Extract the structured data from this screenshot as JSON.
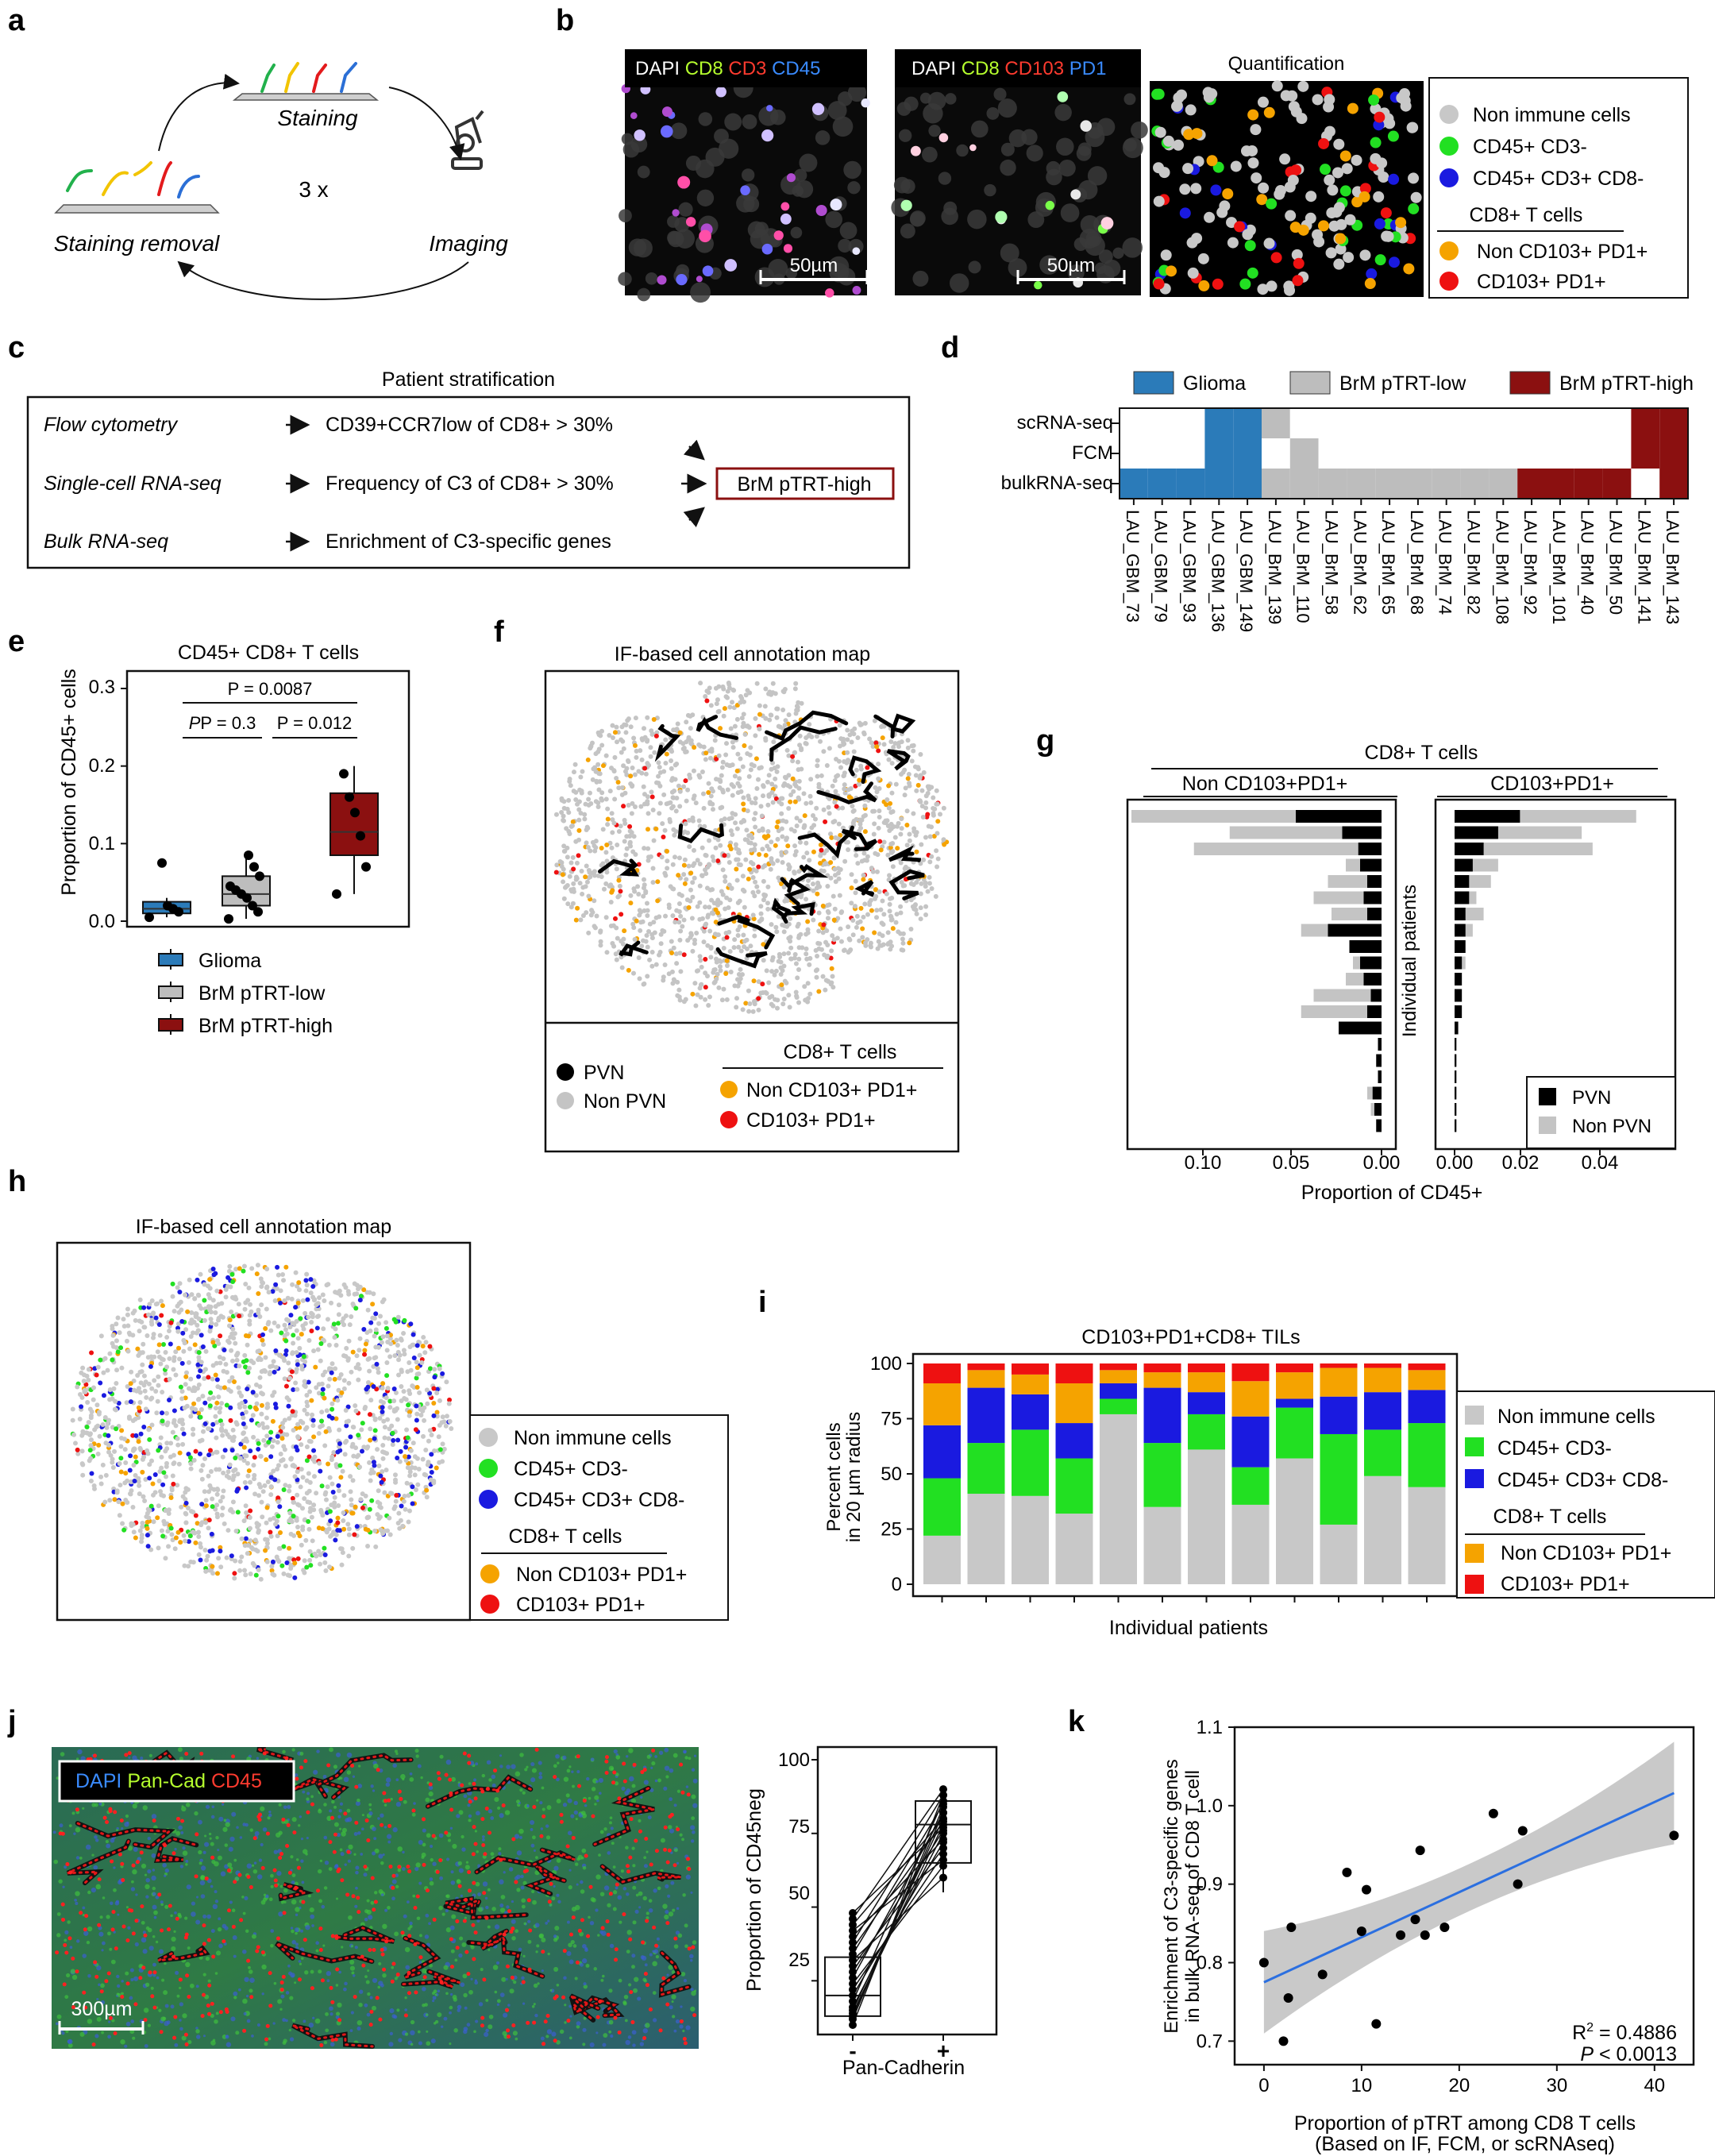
{
  "colors": {
    "glioma": "#2b7bb9",
    "low": "#bdbdbd",
    "high": "#8b1010",
    "nonimmune": "#c8c8c8",
    "cd45cd3neg": "#22e022",
    "cd45cd3cd8neg": "#1a1ae0",
    "noncd103": "#f5a300",
    "cd103": "#ee1111",
    "pvn": "#000000",
    "nonpvn": "#c4c4c4",
    "ecdf": "#2c2c2c"
  },
  "panel_letters": {
    "a": "a",
    "b": "b",
    "c": "c",
    "d": "d",
    "e": "e",
    "f": "f",
    "g": "g",
    "h": "h",
    "i": "i",
    "j": "j",
    "k": "k"
  },
  "a": {
    "top": "Staining",
    "left": "Staining removal",
    "right": "Imaging",
    "center": "3 x"
  },
  "b": {
    "img1": {
      "dapi": "DAPI",
      "cd8": "CD8",
      "cd3": "CD3",
      "cd45": "CD45"
    },
    "img2": {
      "dapi": "DAPI",
      "cd8": "CD8",
      "cd103": "CD103",
      "pd1": "PD1"
    },
    "scalebar": "50µm",
    "quant_title": "Quantification",
    "legend": {
      "nonimmune": "Non immune cells",
      "cd45cd3neg": "CD45+ CD3-",
      "cd45cd3cd8neg": "CD45+ CD3+ CD8-",
      "header": "CD8+ T cells",
      "noncd103": "Non CD103+ PD1+",
      "cd103": "CD103+ PD1+"
    }
  },
  "c": {
    "title": "Patient stratification",
    "rows": [
      {
        "method": "Flow cytometry",
        "criterion": "CD39+CCR7low of CD8+ > 30%"
      },
      {
        "method": "Single-cell RNA-seq",
        "criterion": "Frequency of C3 of CD8+ > 30%"
      },
      {
        "method": "Bulk RNA-seq",
        "criterion": "Enrichment of C3-specific genes"
      }
    ],
    "outcome": "BrM pTRT-high"
  },
  "d": {
    "legend": [
      "Glioma",
      "BrM pTRT-low",
      "BrM pTRT-high"
    ],
    "rows": [
      "scRNA-seq",
      "FCM",
      "bulkRNA-seq"
    ],
    "samples": [
      "LAU_GBM_73",
      "LAU_GBM_79",
      "LAU_GBM_93",
      "LAU_GBM_136",
      "LAU_GBM_149",
      "LAU_BrM_139",
      "LAU_BrM_110",
      "LAU_BrM_58",
      "LAU_BrM_62",
      "LAU_BrM_65",
      "LAU_BrM_68",
      "LAU_BrM_74",
      "LAU_BrM_82",
      "LAU_BrM_108",
      "LAU_BrM_92",
      "LAU_BrM_101",
      "LAU_BrM_40",
      "LAU_BrM_50",
      "LAU_BrM_141",
      "LAU_BrM_143"
    ],
    "matrix": [
      [
        0,
        0,
        0,
        1,
        1,
        2,
        0,
        0,
        0,
        0,
        0,
        0,
        0,
        0,
        0,
        0,
        0,
        0,
        3,
        3
      ],
      [
        0,
        0,
        0,
        1,
        1,
        0,
        2,
        0,
        0,
        0,
        0,
        0,
        0,
        0,
        0,
        0,
        0,
        0,
        3,
        3
      ],
      [
        1,
        1,
        1,
        1,
        1,
        2,
        2,
        2,
        2,
        2,
        2,
        2,
        2,
        2,
        3,
        3,
        3,
        3,
        0,
        3
      ]
    ]
  },
  "e": {
    "title": "CD45+ CD8+ T cells",
    "ylabel": "Proportion of CD45+ cells",
    "yticks": [
      "0.0",
      "0.1",
      "0.2",
      "0.3"
    ],
    "p": {
      "p1": "P = 0.3",
      "p2": "P = 0.012",
      "p3": "P = 0.0087"
    },
    "legend": [
      "Glioma",
      "BrM pTRT-low",
      "BrM pTRT-high"
    ]
  },
  "f": {
    "title": "IF-based cell annotation map",
    "pvn": "PVN",
    "nonpvn": "Non PVN",
    "header": "CD8+ T cells",
    "noncd103": "Non CD103+ PD1+",
    "cd103": "CD103+ PD1+"
  },
  "g": {
    "title": "CD8+ T cells",
    "left_header": "Non CD103+PD1+",
    "right_header": "CD103+PD1+",
    "ylabel": "Individual patients",
    "xlabel": "Proportion of CD45+",
    "left_ticks": [
      "0.10",
      "0.05",
      "0.00"
    ],
    "right_ticks": [
      "0.00",
      "0.02",
      "0.04"
    ],
    "legend": {
      "pvn": "PVN",
      "nonpvn": "Non PVN"
    }
  },
  "h": {
    "title": "IF-based cell annotation map",
    "legend": {
      "nonimmune": "Non immune cells",
      "cd45cd3neg": "CD45+ CD3-",
      "cd45cd3cd8neg": "CD45+ CD3+ CD8-",
      "header": "CD8+ T cells",
      "noncd103": "Non CD103+ PD1+",
      "cd103": "CD103+ PD1+"
    }
  },
  "i": {
    "legend": {
      "nonimmune": "Non immune cells",
      "cd45cd3neg": "CD45+ CD3-",
      "cd45cd3cd8neg": "CD45+ CD3+ CD8-",
      "header": "CD8+ T cells",
      "noncd103": "Non CD103+ PD1+",
      "cd103": "CD103+ PD1+"
    }
  },
  "j": {
    "legend": {
      "dapi": "DAPI",
      "pancad": "Pan-Cad",
      "cd45": "CD45"
    },
    "scalebar": "300µm",
    "ylabel": "Proportion of CD45neg",
    "yticks": [
      "25",
      "50",
      "75",
      "100"
    ],
    "xticks": [
      "-",
      "+"
    ],
    "xlabel": "Pan-Cadherin"
  },
  "k": {
    "ylabel1": "Enrichment of C3-specific genes",
    "ylabel2": "in bulk RNA-seq of CD8 T cell",
    "xlabel1": "Proportion of pTRT among CD8 T cells",
    "xlabel2": "(Based on IF, FCM, or scRNAseq)",
    "r2_base": "R",
    "r2_sup": "2",
    "r2_val": " = 0.4886",
    "p_it": "P",
    "p_val": " < 0.0013"
  },
  "chart_data": [
    {
      "type": "boxplot",
      "id": "e",
      "title": "CD45+ CD8+ T cells",
      "ylabel": "Proportion of CD45+ cells",
      "ylim": [
        0,
        0.3
      ],
      "groups": [
        {
          "name": "Glioma",
          "q1": 0.01,
          "median": 0.016,
          "q3": 0.025,
          "whisker_low": 0.005,
          "whisker_high": 0.03,
          "points": [
            0.005,
            0.012,
            0.016,
            0.02,
            0.075
          ]
        },
        {
          "name": "BrM pTRT-low",
          "q1": 0.02,
          "median": 0.035,
          "q3": 0.058,
          "whisker_low": 0.003,
          "whisker_high": 0.085,
          "points": [
            0.003,
            0.012,
            0.02,
            0.03,
            0.035,
            0.04,
            0.045,
            0.058,
            0.07,
            0.085
          ]
        },
        {
          "name": "BrM pTRT-high",
          "q1": 0.085,
          "median": 0.115,
          "q3": 0.165,
          "whisker_low": 0.035,
          "whisker_high": 0.2,
          "points": [
            0.035,
            0.07,
            0.11,
            0.14,
            0.16,
            0.19
          ]
        }
      ]
    },
    {
      "type": "bar",
      "id": "g",
      "title": "CD8+ T cells",
      "ylabel": "Individual patients",
      "xlabel": "Proportion of CD45+",
      "series": [
        {
          "name": "PVN"
        },
        {
          "name": "Non PVN"
        }
      ],
      "non_cd103": {
        "pvn": [
          0.048,
          0.022,
          0.013,
          0.012,
          0.008,
          0.01,
          0.008,
          0.03,
          0.018,
          0.012,
          0.01,
          0.006,
          0.008,
          0.024,
          0.002,
          0.003,
          0.002,
          0.005,
          0.004,
          0.003
        ],
        "nonpvn": [
          0.14,
          0.085,
          0.105,
          0.02,
          0.03,
          0.038,
          0.028,
          0.045,
          0.018,
          0.016,
          0.02,
          0.038,
          0.045,
          0.002,
          0.001,
          0.002,
          0.002,
          0.008,
          0.006,
          0.002
        ]
      },
      "cd103": {
        "pvn": [
          0.018,
          0.012,
          0.008,
          0.005,
          0.004,
          0.004,
          0.003,
          0.003,
          0.003,
          0.002,
          0.002,
          0.002,
          0.002,
          0.001,
          0.0005,
          0.0005,
          0.0005,
          0.0005,
          0.0005,
          0.0005
        ],
        "nonpvn": [
          0.05,
          0.035,
          0.038,
          0.012,
          0.01,
          0.006,
          0.008,
          0.005,
          0.003,
          0.003,
          0.002,
          0.002,
          0.001,
          0.001,
          0.0005,
          0.0005,
          0.0005,
          0.0005,
          0.0005,
          0.0005
        ]
      }
    },
    {
      "type": "bar",
      "id": "i",
      "title": "CD103+PD1+CD8+ TILs",
      "ylabel": "Percent cells in 20 µm radius",
      "xlabel": "Individual patients",
      "ylim": [
        0,
        100
      ],
      "yticks": [
        0,
        25,
        50,
        75,
        100
      ],
      "series": [
        {
          "name": "Non immune cells",
          "values": [
            22,
            41,
            40,
            32,
            77,
            35,
            61,
            36,
            57,
            27,
            49,
            44
          ]
        },
        {
          "name": "CD45+ CD3-",
          "values": [
            26,
            23,
            30,
            25,
            7,
            29,
            16,
            17,
            23,
            41,
            21,
            29
          ]
        },
        {
          "name": "CD45+ CD3+ CD8-",
          "values": [
            24,
            25,
            16,
            16,
            7,
            25,
            10,
            23,
            4,
            17,
            17,
            15
          ]
        },
        {
          "name": "Non CD103+ PD1+",
          "values": [
            19,
            8,
            9,
            18,
            6,
            7,
            9,
            16,
            12,
            13,
            11,
            9
          ]
        },
        {
          "name": "CD103+ PD1+",
          "values": [
            9,
            3,
            5,
            9,
            3,
            4,
            4,
            8,
            4,
            2,
            2,
            3
          ]
        }
      ]
    },
    {
      "type": "line",
      "id": "j",
      "ylabel": "Proportion of CD45neg",
      "xlabel": "Pan-Cadherin",
      "categories": [
        "-",
        "+"
      ],
      "ylim": [
        10,
        100
      ],
      "box_neg": {
        "q1": 13,
        "median": 20,
        "q3": 33,
        "whisker_low": 10,
        "whisker_high": 48
      },
      "box_pos": {
        "q1": 65,
        "median": 78,
        "q3": 86,
        "whisker_low": 55,
        "whisker_high": 90
      },
      "pairs": [
        [
          10,
          88
        ],
        [
          12,
          84
        ],
        [
          13,
          82
        ],
        [
          14,
          78
        ],
        [
          15,
          80
        ],
        [
          16,
          75
        ],
        [
          18,
          86
        ],
        [
          20,
          72
        ],
        [
          22,
          68
        ],
        [
          24,
          64
        ],
        [
          26,
          82
        ],
        [
          28,
          76
        ],
        [
          30,
          70
        ],
        [
          32,
          60
        ],
        [
          34,
          85
        ],
        [
          36,
          79
        ],
        [
          38,
          88
        ],
        [
          40,
          73
        ],
        [
          42,
          66
        ],
        [
          44,
          80
        ],
        [
          46,
          90
        ],
        [
          48,
          77
        ]
      ]
    },
    {
      "type": "scatter",
      "id": "k",
      "xlabel": "Proportion of pTRT among CD8 T cells",
      "ylabel": "Enrichment of C3-specific genes in bulk RNA-seq of CD8 T cell",
      "xlim": [
        -3,
        44
      ],
      "ylim": [
        0.67,
        1.1
      ],
      "xticks": [
        0,
        10,
        20,
        30,
        40
      ],
      "yticks": [
        0.7,
        0.8,
        0.9,
        1.0,
        1.1
      ],
      "points": [
        [
          0,
          0.8
        ],
        [
          2,
          0.7
        ],
        [
          2.5,
          0.755
        ],
        [
          2.8,
          0.845
        ],
        [
          6,
          0.785
        ],
        [
          8.5,
          0.915
        ],
        [
          10,
          0.84
        ],
        [
          10.5,
          0.893
        ],
        [
          11.5,
          0.722
        ],
        [
          14,
          0.835
        ],
        [
          15.5,
          0.855
        ],
        [
          16,
          0.943
        ],
        [
          16.5,
          0.835
        ],
        [
          18.5,
          0.845
        ],
        [
          23.5,
          0.99
        ],
        [
          26,
          0.9
        ],
        [
          26.5,
          0.968
        ],
        [
          42,
          0.962
        ]
      ],
      "fit": {
        "slope": 0.00574,
        "intercept": 0.775
      },
      "r2": 0.4886
    }
  ]
}
